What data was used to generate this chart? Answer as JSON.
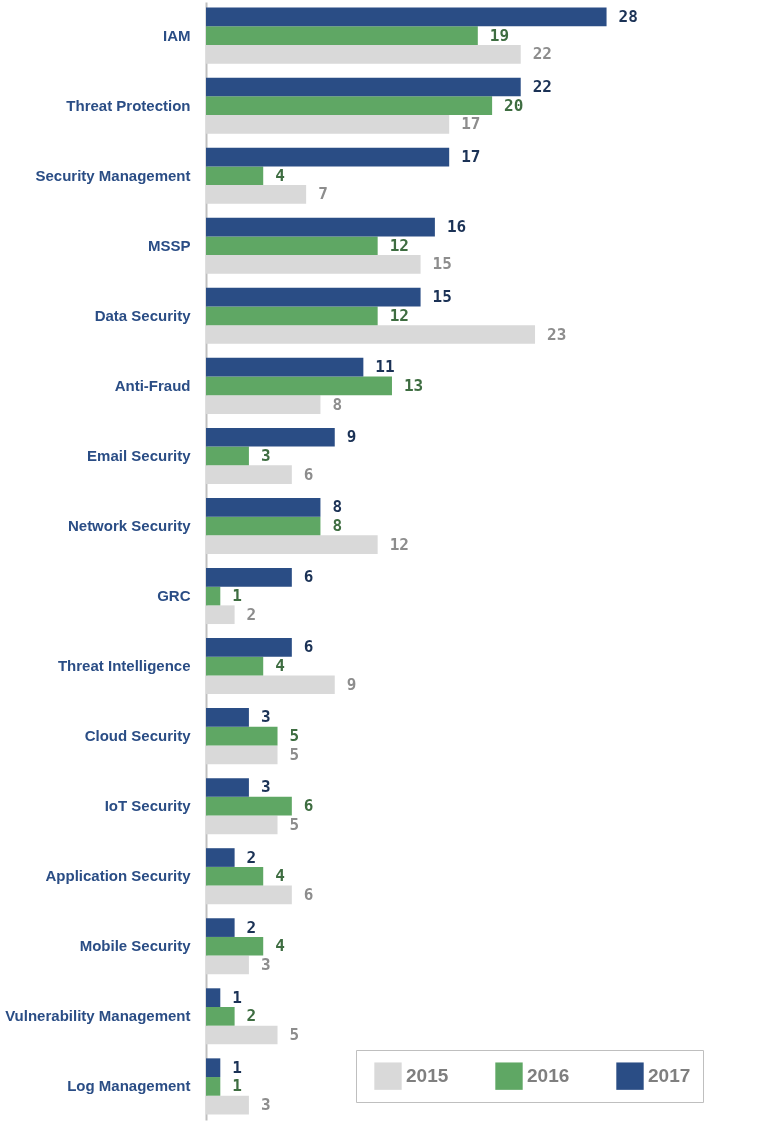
{
  "chart_data": {
    "type": "bar",
    "orientation": "horizontal",
    "categories": [
      "IAM",
      "Threat Protection",
      "Security Management",
      "MSSP",
      "Data Security",
      "Anti-Fraud",
      "Email Security",
      "Network Security",
      "GRC",
      "Threat Intelligence",
      "Cloud Security",
      "IoT Security",
      "Application Security",
      "Mobile Security",
      "Vulnerability Management",
      "Log Management"
    ],
    "series": [
      {
        "name": "2015",
        "color": "#d9d9d9",
        "values": [
          22,
          17,
          7,
          15,
          23,
          8,
          6,
          12,
          2,
          9,
          5,
          5,
          6,
          3,
          5,
          3
        ]
      },
      {
        "name": "2016",
        "color": "#5fa764",
        "values": [
          19,
          20,
          4,
          12,
          12,
          13,
          3,
          8,
          1,
          4,
          5,
          6,
          4,
          4,
          2,
          1
        ]
      },
      {
        "name": "2017",
        "color": "#2a4d85",
        "values": [
          28,
          22,
          17,
          16,
          15,
          11,
          9,
          8,
          6,
          6,
          3,
          3,
          2,
          2,
          1,
          1
        ]
      }
    ],
    "xlim": [
      0,
      36
    ],
    "data_labels": true,
    "legend": "bottom right",
    "tick_labels": "y"
  }
}
